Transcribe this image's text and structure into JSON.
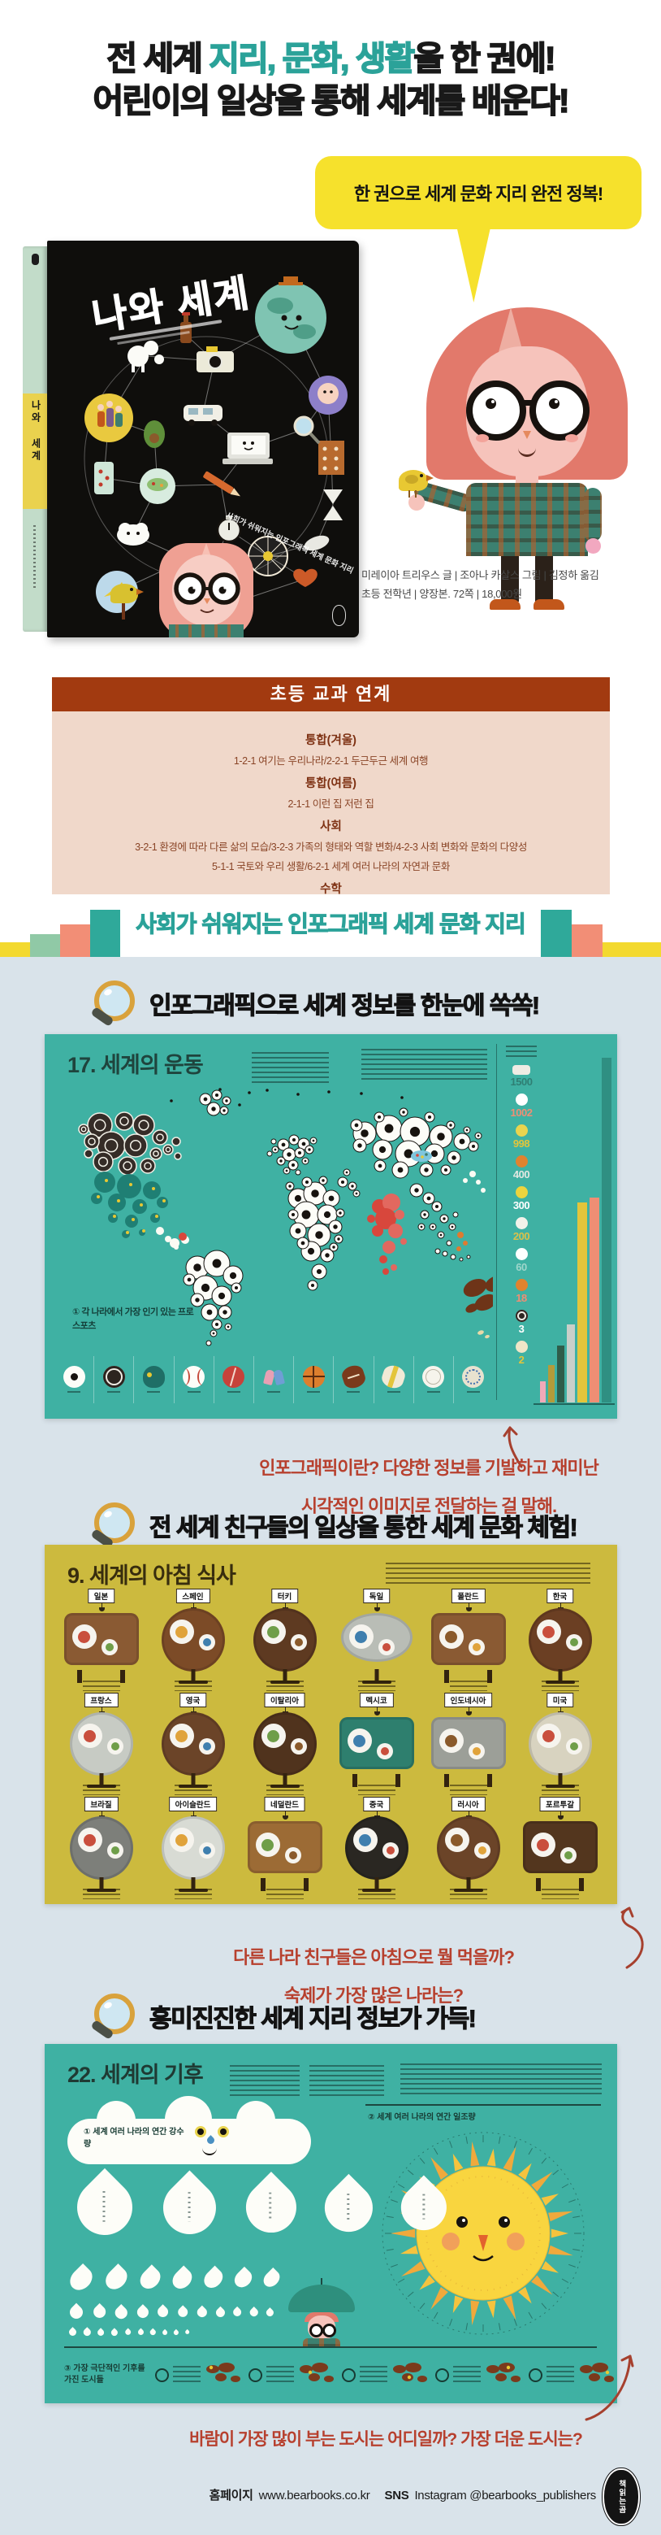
{
  "colors": {
    "accent_teal": "#2ba299",
    "headline": "#191919",
    "bubble_yellow": "#f6e12c",
    "curriculum_header_bg": "#a23a10",
    "curriculum_body_bg": "#f0d8ca",
    "curriculum_text": "#7e3113",
    "section_bg": "#d9e3ea",
    "spread_sports_bg": "#3fb1a3",
    "spread_breakfast_bg": "#ccba3e",
    "spread_climate_bg": "#3fb1a3",
    "caption_red": "#b7402e"
  },
  "headline": {
    "line1_pre": "전 세계 ",
    "line1_accent": "지리, 문화, 생활",
    "line1_post": "을 한 권에!",
    "line2": "어린이의 일상을 통해 세계를 배운다!"
  },
  "speech_bubble": {
    "text": "한 권으로 세계 문화 지리 완전 정복!"
  },
  "book": {
    "cover_title": "나와 세계",
    "spine_title": "나와 세계",
    "cover_tagline": "사회가 쉬워지는 인포그래픽 세계 문화 지리"
  },
  "credits": {
    "line1": "미레이아 트리우스 글 | 조아나 카살스 그림 | 김정하 옮김",
    "line2": "초등 전학년 | 양장본. 72쪽 | 18,000원"
  },
  "curriculum": {
    "title": "초등 교과 연계",
    "rows": [
      {
        "bold": true,
        "text": "통합(겨울)"
      },
      {
        "bold": false,
        "text": "1-2-1 여기는 우리나라/2-2-1 두근두근 세계 여행"
      },
      {
        "bold": true,
        "text": "통합(여름)"
      },
      {
        "bold": false,
        "text": "2-1-1 이런 집 저런 집"
      },
      {
        "bold": true,
        "text": "사회"
      },
      {
        "bold": false,
        "text": "3-2-1 환경에 따라 다른 삶의 모습/3-2-3 가족의 형태와 역할 변화/4-2-3 사회 변화와 문화의 다양성"
      },
      {
        "bold": false,
        "text": "5-1-1 국토와 우리 생활/6-2-1 세계 여러 나라의 자연과 문화"
      },
      {
        "bold": true,
        "text": "수학"
      },
      {
        "bold": false,
        "text": "2-2-5 표와 그래프/3-2-6 자료의 정리/4-1-5 막대그래프/4-2-5 꺾은선그래프/6-1-5 여러 가지 그래프"
      }
    ]
  },
  "banner": {
    "text": "사회가 쉬워지는 인포그래픽 세계 문화 지리"
  },
  "sections": [
    {
      "heading": "인포그래픽으로 세계 정보를 한눈에 쏙쏙!"
    },
    {
      "heading": "전 세계 친구들의 일상을 통한 세계 문화 체험!"
    },
    {
      "heading": "흥미진진한 세계 지리 정보가 가득!"
    }
  ],
  "spread_sports": {
    "title": "17. 세계의 운동",
    "note": "① 각 나라에서 가장 인기 있는 프로 스포츠",
    "legend": [
      {
        "icon": "car",
        "value": "1500",
        "color": "#2f7f74"
      },
      {
        "icon": "soccer",
        "value": "1002",
        "color": "#ef8e74"
      },
      {
        "icon": "volleyball",
        "value": "998",
        "color": "#e3c53b"
      },
      {
        "icon": "basketball",
        "value": "400",
        "color": "#e3e8e2"
      },
      {
        "icon": "tennis",
        "value": "300",
        "color": "#ffffff"
      },
      {
        "icon": "shuttlecock",
        "value": "200",
        "color": "#d9c14a"
      },
      {
        "icon": "baseball",
        "value": "60",
        "color": "#9fd6cb"
      },
      {
        "icon": "table-tennis",
        "value": "18",
        "color": "#ef8e74"
      },
      {
        "icon": "hockey-puck",
        "value": "3",
        "color": "#ffffff"
      },
      {
        "icon": "rugby",
        "value": "2",
        "color": "#e3c53b"
      }
    ],
    "sport_icons": [
      "soccer",
      "hockey-puck",
      "helmet",
      "baseball",
      "cricket",
      "wrestling",
      "basketball",
      "american-football",
      "rugby",
      "volleyball",
      "sepak-takraw"
    ]
  },
  "spread_breakfast": {
    "title": "9. 세계의 아침 식사",
    "rows": [
      [
        {
          "name": "일본",
          "shape": "rect",
          "color": "#8a5a33"
        },
        {
          "name": "스페인",
          "shape": "round",
          "color": "#7c4b27"
        },
        {
          "name": "터키",
          "shape": "round",
          "color": "#5e3a21"
        },
        {
          "name": "독일",
          "shape": "oval",
          "color": "#b9bdb6"
        },
        {
          "name": "폴란드",
          "shape": "rect",
          "color": "#8a5a33"
        },
        {
          "name": "한국",
          "shape": "round",
          "color": "#6b3f23"
        }
      ],
      [
        {
          "name": "프랑스",
          "shape": "round",
          "color": "#c7cbc4"
        },
        {
          "name": "영국",
          "shape": "round",
          "color": "#6b4428"
        },
        {
          "name": "이탈리아",
          "shape": "round",
          "color": "#50331d"
        },
        {
          "name": "멕시코",
          "shape": "rect",
          "color": "#2e7f6e"
        },
        {
          "name": "인도네시아",
          "shape": "rect",
          "color": "#9c9f98"
        },
        {
          "name": "미국",
          "shape": "round",
          "color": "#d8d3c0"
        }
      ],
      [
        {
          "name": "브라질",
          "shape": "round",
          "color": "#7d7f7a"
        },
        {
          "name": "아이슬란드",
          "shape": "round",
          "color": "#d8dbd4"
        },
        {
          "name": "네덜란드",
          "shape": "rect",
          "color": "#9c6b35"
        },
        {
          "name": "중국",
          "shape": "round",
          "color": "#2a2722"
        },
        {
          "name": "러시아",
          "shape": "round",
          "color": "#6b4428"
        },
        {
          "name": "포르투갈",
          "shape": "rect",
          "color": "#53361e"
        }
      ]
    ]
  },
  "spread_climate": {
    "title": "22. 세계의 기후",
    "rain_label": "① 세계 여러 나라의 연간 강수량",
    "sun_label": "② 세계 여러 나라의 연간 일조량",
    "extreme_label": "③ 가장 극단적인 기후를 가진 도시들",
    "drop_rows": [
      {
        "count": 5,
        "h": 68
      },
      {
        "count": 7,
        "h": 30
      },
      {
        "count": 11,
        "h": 16
      },
      {
        "count": 10,
        "h": 9
      }
    ]
  },
  "captions": {
    "c1_line1": "인포그래픽이란? 다양한 정보를 기발하고 재미난",
    "c1_line2": "시각적인 이미지로 전달하는 걸 말해.",
    "c2_line1": "다른 나라 친구들은 아침으로 뭘 먹을까?",
    "c2_line2": "숙제가 가장 많은 나라는?",
    "c3": "바람이 가장 많이 부는 도시는 어디일까? 가장 더운 도시는?"
  },
  "footer": {
    "home_label": "홈페이지",
    "home_url": "www.bearbooks.co.kr",
    "sns_label": "SNS",
    "sns_value": "Instagram @bearbooks_publishers",
    "stamp_text": "책읽는곰"
  }
}
